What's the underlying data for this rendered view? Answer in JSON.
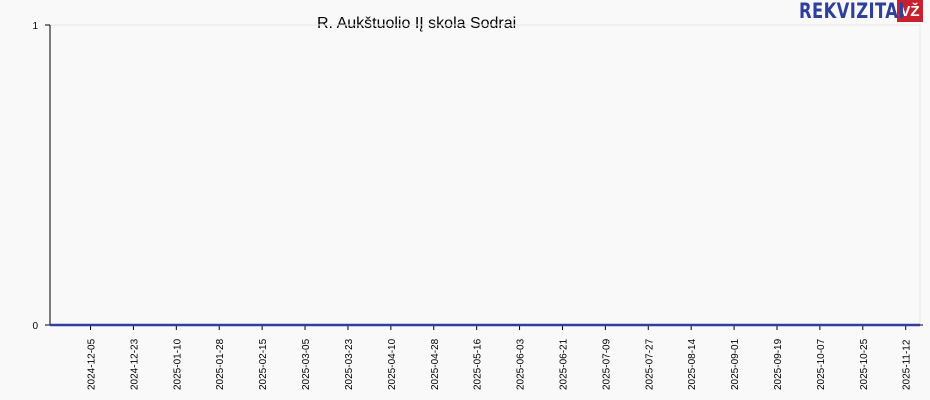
{
  "logo": {
    "text": "REKVIZITAI",
    "badge": "VŽ",
    "colors": {
      "text": "#2f3f9e",
      "badge": "#c8202f"
    }
  },
  "chart_data": {
    "type": "line",
    "title": "R. Aukštuolio IĮ skola Sodrai",
    "xlabel": "",
    "ylabel": "",
    "ylim": [
      0,
      1
    ],
    "y_ticks": [
      "0",
      "1"
    ],
    "xlim": [
      "2024-11-18",
      "2025-11-18"
    ],
    "x_ticks": [
      "2024-12-05",
      "2024-12-23",
      "2025-01-10",
      "2025-01-28",
      "2025-02-15",
      "2025-03-05",
      "2025-03-23",
      "2025-04-10",
      "2025-04-28",
      "2025-05-16",
      "2025-06-03",
      "2025-06-21",
      "2025-07-09",
      "2025-07-27",
      "2025-08-14",
      "2025-09-01",
      "2025-09-19",
      "2025-10-07",
      "2025-10-25",
      "2025-11-12"
    ],
    "series": [
      {
        "x": [
          "2024-11-18",
          "2025-11-18"
        ],
        "values": [
          0,
          0
        ],
        "color": "#2f3f9e"
      }
    ],
    "grid": false,
    "legend": "none"
  }
}
